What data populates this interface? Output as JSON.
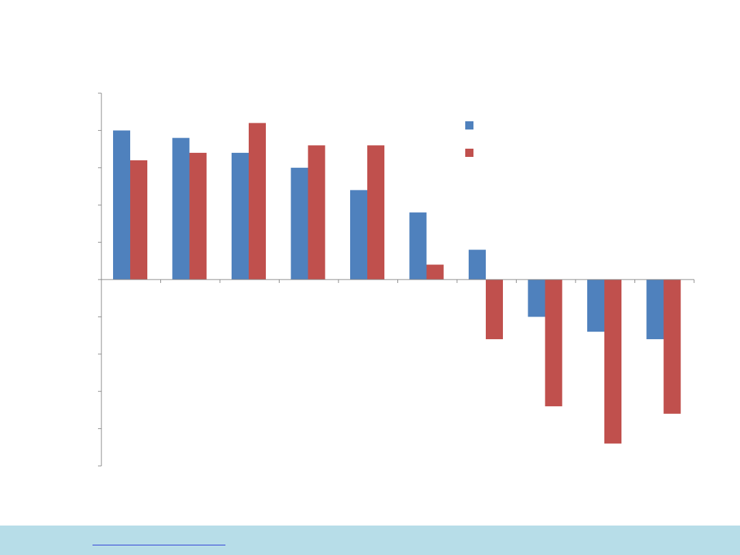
{
  "chart_data": {
    "type": "bar",
    "title": "",
    "xlabel": "",
    "ylabel": "",
    "categories": [
      "",
      "",
      "",
      "",
      "",
      "",
      "",
      "",
      "",
      ""
    ],
    "ylim": [
      -25,
      25
    ],
    "y_tick_step": 5,
    "grid": false,
    "legend_position": "top-right",
    "series": [
      {
        "name": "",
        "color": "#4f81bd",
        "values": [
          20,
          19,
          17,
          15,
          12,
          9,
          4,
          -5,
          -7,
          -8
        ]
      },
      {
        "name": "",
        "color": "#c0504d",
        "values": [
          16,
          17,
          21,
          18,
          18,
          2,
          -8,
          -17,
          -22,
          -18
        ]
      }
    ]
  },
  "footer": {
    "band_color": "#b7dde8",
    "link_color": "#2a3bd6"
  }
}
